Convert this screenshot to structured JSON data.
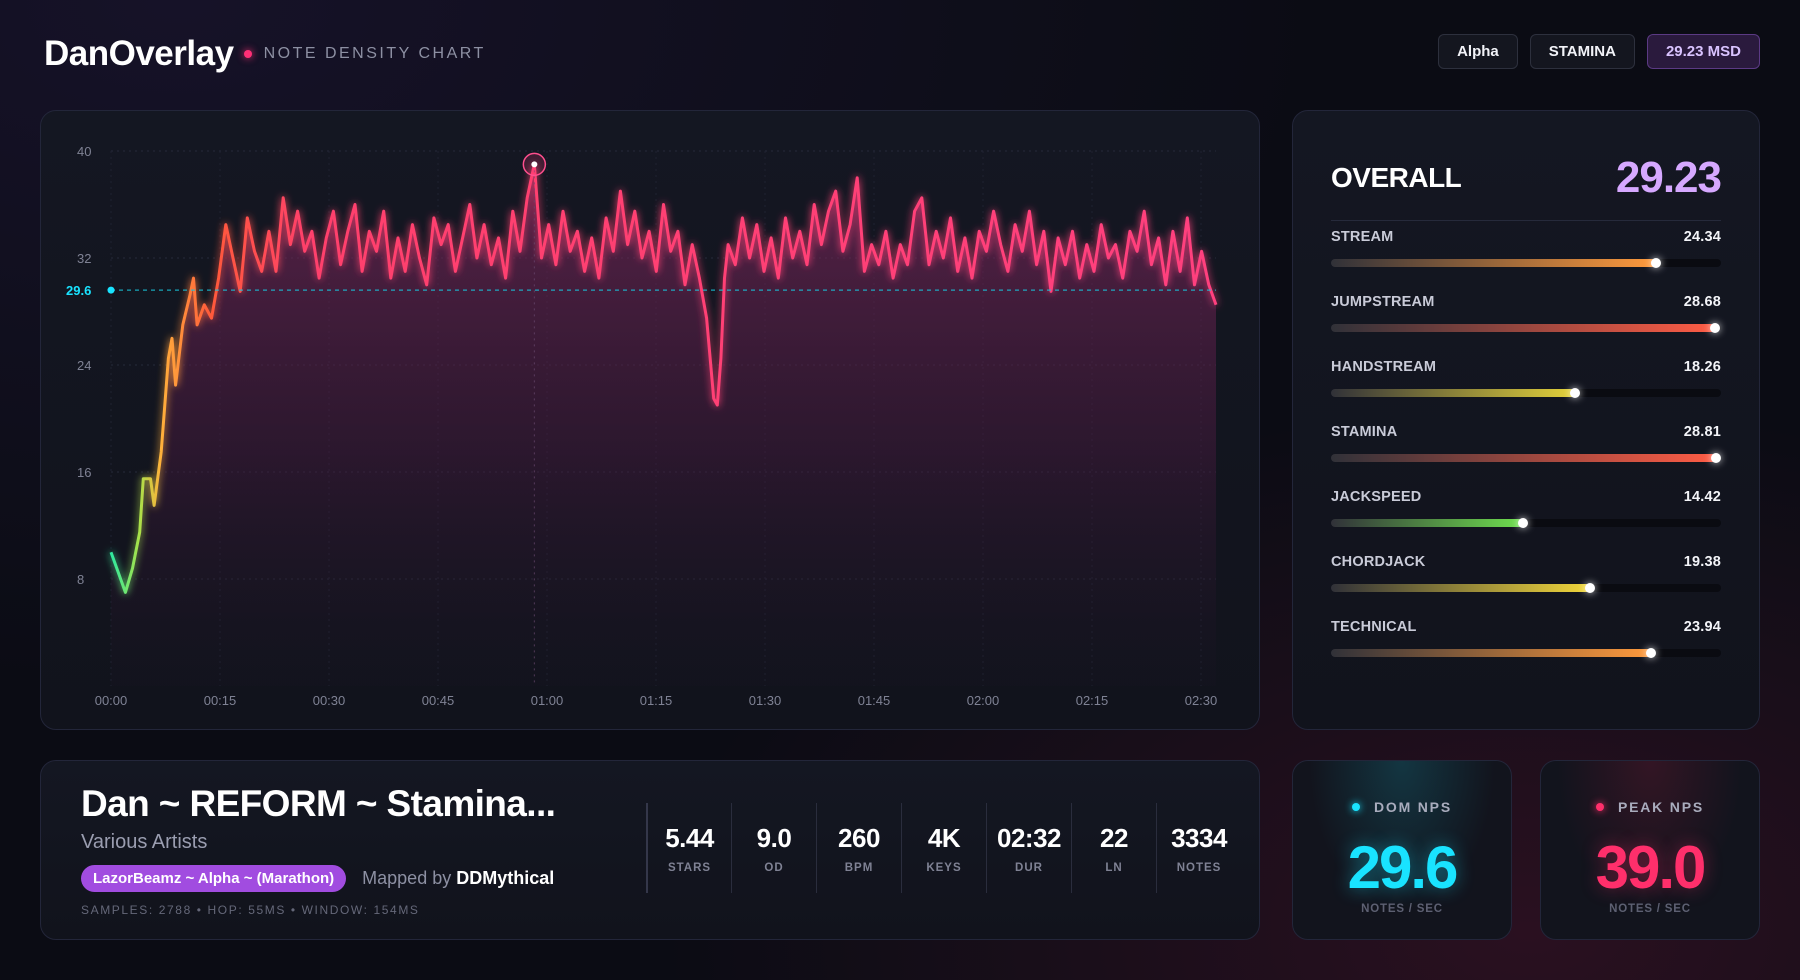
{
  "header": {
    "brand": "DanOverlay",
    "subtitle": "NOTE DENSITY CHART",
    "pills": [
      "Alpha",
      "STAMINA",
      "29.23 MSD"
    ]
  },
  "chart_data": {
    "type": "area",
    "x_ticks": [
      "00:00",
      "00:15",
      "00:30",
      "00:45",
      "01:00",
      "01:15",
      "01:30",
      "01:45",
      "02:00",
      "02:15",
      "02:30"
    ],
    "y_ticks": [
      8,
      16,
      24,
      32,
      40
    ],
    "ylim": [
      0,
      40
    ],
    "xlim_seconds": [
      0,
      154
    ],
    "reference_line": {
      "label": "29.6",
      "value": 29.6
    },
    "peak_marker": {
      "time_seconds": 59,
      "value": 39.0
    },
    "series": [
      {
        "points": [
          [
            0,
            10.0
          ],
          [
            1,
            8.5
          ],
          [
            2,
            7.0
          ],
          [
            3,
            8.8
          ],
          [
            4,
            11.5
          ],
          [
            4.5,
            15.5
          ],
          [
            5.5,
            15.5
          ],
          [
            6,
            13.5
          ],
          [
            7,
            17.5
          ],
          [
            7.5,
            21.0
          ],
          [
            8,
            24.5
          ],
          [
            8.5,
            26.0
          ],
          [
            9,
            22.5
          ],
          [
            10,
            27.0
          ],
          [
            11,
            29.2
          ],
          [
            11.5,
            30.5
          ],
          [
            12,
            27.0
          ],
          [
            13,
            28.5
          ],
          [
            14,
            27.5
          ],
          [
            15,
            30.5
          ],
          [
            16,
            34.5
          ],
          [
            17,
            32.0
          ],
          [
            18,
            29.5
          ],
          [
            19,
            35.0
          ],
          [
            20,
            32.5
          ],
          [
            21,
            31.0
          ],
          [
            22,
            34.0
          ],
          [
            23,
            31.0
          ],
          [
            24,
            36.5
          ],
          [
            25,
            33.0
          ],
          [
            26,
            35.5
          ],
          [
            27,
            32.5
          ],
          [
            28,
            34.0
          ],
          [
            29,
            30.5
          ],
          [
            30,
            33.5
          ],
          [
            31,
            35.5
          ],
          [
            32,
            31.5
          ],
          [
            33,
            34.0
          ],
          [
            34,
            36.0
          ],
          [
            35,
            31.0
          ],
          [
            36,
            34.0
          ],
          [
            37,
            32.5
          ],
          [
            38,
            35.5
          ],
          [
            39,
            30.5
          ],
          [
            40,
            33.5
          ],
          [
            41,
            31.0
          ],
          [
            42,
            34.5
          ],
          [
            43,
            32.0
          ],
          [
            44,
            30.0
          ],
          [
            45,
            35.0
          ],
          [
            46,
            33.0
          ],
          [
            47,
            34.5
          ],
          [
            48,
            31.0
          ],
          [
            49,
            33.5
          ],
          [
            50,
            36.0
          ],
          [
            51,
            32.0
          ],
          [
            52,
            34.5
          ],
          [
            53,
            31.5
          ],
          [
            54,
            33.5
          ],
          [
            55,
            30.5
          ],
          [
            56,
            35.5
          ],
          [
            57,
            32.5
          ],
          [
            58,
            36.5
          ],
          [
            59,
            39.0
          ],
          [
            60,
            32.0
          ],
          [
            61,
            34.5
          ],
          [
            62,
            31.5
          ],
          [
            63,
            35.5
          ],
          [
            64,
            32.5
          ],
          [
            65,
            34.0
          ],
          [
            66,
            31.0
          ],
          [
            67,
            33.5
          ],
          [
            68,
            30.5
          ],
          [
            69,
            35.0
          ],
          [
            70,
            32.5
          ],
          [
            71,
            37.0
          ],
          [
            72,
            33.0
          ],
          [
            73,
            35.5
          ],
          [
            74,
            32.0
          ],
          [
            75,
            34.0
          ],
          [
            76,
            31.0
          ],
          [
            77,
            36.0
          ],
          [
            78,
            32.5
          ],
          [
            79,
            34.0
          ],
          [
            80,
            30.0
          ],
          [
            81,
            33.0
          ],
          [
            82,
            30.5
          ],
          [
            83,
            27.5
          ],
          [
            84,
            21.5
          ],
          [
            84.5,
            21.0
          ],
          [
            85,
            24.5
          ],
          [
            85.5,
            30.5
          ],
          [
            86,
            33.0
          ],
          [
            87,
            31.5
          ],
          [
            88,
            35.0
          ],
          [
            89,
            32.0
          ],
          [
            90,
            34.5
          ],
          [
            91,
            31.0
          ],
          [
            92,
            33.5
          ],
          [
            93,
            30.5
          ],
          [
            94,
            35.0
          ],
          [
            95,
            32.0
          ],
          [
            96,
            34.0
          ],
          [
            97,
            31.5
          ],
          [
            98,
            36.0
          ],
          [
            99,
            33.0
          ],
          [
            100,
            35.5
          ],
          [
            101,
            37.0
          ],
          [
            102,
            32.5
          ],
          [
            103,
            34.5
          ],
          [
            104,
            38.0
          ],
          [
            105,
            31.0
          ],
          [
            106,
            33.0
          ],
          [
            107,
            31.5
          ],
          [
            108,
            34.0
          ],
          [
            109,
            30.5
          ],
          [
            110,
            33.0
          ],
          [
            111,
            31.5
          ],
          [
            112,
            35.5
          ],
          [
            113,
            36.5
          ],
          [
            114,
            31.5
          ],
          [
            115,
            34.0
          ],
          [
            116,
            32.0
          ],
          [
            117,
            35.0
          ],
          [
            118,
            31.0
          ],
          [
            119,
            33.5
          ],
          [
            120,
            30.5
          ],
          [
            121,
            34.0
          ],
          [
            122,
            32.5
          ],
          [
            123,
            35.5
          ],
          [
            124,
            33.0
          ],
          [
            125,
            31.0
          ],
          [
            126,
            34.5
          ],
          [
            127,
            32.5
          ],
          [
            128,
            35.5
          ],
          [
            129,
            31.5
          ],
          [
            130,
            34.0
          ],
          [
            131,
            29.5
          ],
          [
            132,
            33.5
          ],
          [
            133,
            31.5
          ],
          [
            134,
            34.0
          ],
          [
            135,
            30.5
          ],
          [
            136,
            33.0
          ],
          [
            137,
            31.0
          ],
          [
            138,
            34.5
          ],
          [
            139,
            32.0
          ],
          [
            140,
            33.0
          ],
          [
            141,
            30.5
          ],
          [
            142,
            34.0
          ],
          [
            143,
            32.5
          ],
          [
            144,
            35.5
          ],
          [
            145,
            31.5
          ],
          [
            146,
            33.5
          ],
          [
            147,
            30.0
          ],
          [
            148,
            34.0
          ],
          [
            149,
            31.0
          ],
          [
            150,
            35.0
          ],
          [
            151,
            30.0
          ],
          [
            152,
            32.5
          ],
          [
            153,
            30.0
          ],
          [
            154,
            28.5
          ]
        ]
      }
    ]
  },
  "skills": {
    "overall_label": "OVERALL",
    "overall_value": "29.23",
    "max": 29.23,
    "items": [
      {
        "name": "STREAM",
        "value": "24.34",
        "num": 24.34,
        "color": "#ff9a3c"
      },
      {
        "name": "JUMPSTREAM",
        "value": "28.68",
        "num": 28.68,
        "color": "#ff5c45"
      },
      {
        "name": "HANDSTREAM",
        "value": "18.26",
        "num": 18.26,
        "color": "#e4d23a"
      },
      {
        "name": "STAMINA",
        "value": "28.81",
        "num": 28.81,
        "color": "#ff5c45"
      },
      {
        "name": "JACKSPEED",
        "value": "14.42",
        "num": 14.42,
        "color": "#6fe04f"
      },
      {
        "name": "CHORDJACK",
        "value": "19.38",
        "num": 19.38,
        "color": "#f2d73a"
      },
      {
        "name": "TECHNICAL",
        "value": "23.94",
        "num": 23.94,
        "color": "#ff9a3c"
      }
    ]
  },
  "song": {
    "title": "Dan ~ REFORM ~ Stamina...",
    "artist": "Various Artists",
    "difficulty": "LazorBeamz ~ Alpha ~ (Marathon)",
    "mapped_by_prefix": "Mapped by",
    "mapper": "DDMythical",
    "meta": "SAMPLES: 2788  •  HOP: 55MS  •  WINDOW: 154MS",
    "stats": [
      {
        "value": "5.44",
        "label": "STARS"
      },
      {
        "value": "9.0",
        "label": "OD"
      },
      {
        "value": "260",
        "label": "BPM"
      },
      {
        "value": "4K",
        "label": "KEYS"
      },
      {
        "value": "02:32",
        "label": "DUR"
      },
      {
        "value": "22",
        "label": "LN"
      },
      {
        "value": "3334",
        "label": "NOTES"
      }
    ]
  },
  "dom_nps": {
    "label": "DOM NPS",
    "value": "29.6",
    "unit": "NOTES / SEC",
    "color": "#19e3ff"
  },
  "peak_nps": {
    "label": "PEAK NPS",
    "value": "39.0",
    "unit": "NOTES / SEC",
    "color": "#ff2f6b"
  }
}
